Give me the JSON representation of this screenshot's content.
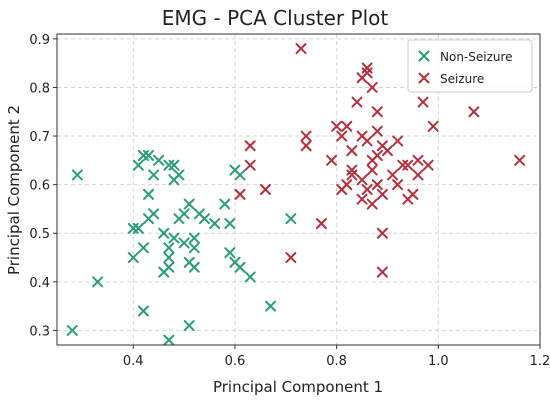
{
  "chart_data": {
    "type": "scatter",
    "title": "EMG - PCA Cluster Plot",
    "xlabel": "Principal Component 1",
    "ylabel": "Principal Component 2",
    "xlim": [
      0.25,
      1.2
    ],
    "ylim": [
      0.27,
      0.91
    ],
    "xticks": [
      0.4,
      0.6,
      0.8,
      1.0,
      1.2
    ],
    "yticks": [
      0.3,
      0.4,
      0.5,
      0.6,
      0.7,
      0.8,
      0.9
    ],
    "xtick_labels": [
      "0.4",
      "0.6",
      "0.8",
      "1.0",
      "1.2"
    ],
    "ytick_labels": [
      "0.3",
      "0.4",
      "0.5",
      "0.6",
      "0.7",
      "0.8",
      "0.9"
    ],
    "grid": true,
    "legend_position": "top-right",
    "marker": "x",
    "series": [
      {
        "name": "Non-Seizure",
        "color": "#2a9d7a",
        "points": [
          [
            0.28,
            0.3
          ],
          [
            0.29,
            0.62
          ],
          [
            0.33,
            0.4
          ],
          [
            0.4,
            0.45
          ],
          [
            0.4,
            0.51
          ],
          [
            0.41,
            0.64
          ],
          [
            0.41,
            0.51
          ],
          [
            0.42,
            0.47
          ],
          [
            0.42,
            0.34
          ],
          [
            0.42,
            0.66
          ],
          [
            0.43,
            0.58
          ],
          [
            0.43,
            0.53
          ],
          [
            0.43,
            0.66
          ],
          [
            0.44,
            0.62
          ],
          [
            0.44,
            0.54
          ],
          [
            0.45,
            0.65
          ],
          [
            0.46,
            0.5
          ],
          [
            0.46,
            0.42
          ],
          [
            0.47,
            0.45
          ],
          [
            0.47,
            0.43
          ],
          [
            0.47,
            0.64
          ],
          [
            0.47,
            0.47
          ],
          [
            0.48,
            0.64
          ],
          [
            0.48,
            0.61
          ],
          [
            0.48,
            0.49
          ],
          [
            0.49,
            0.53
          ],
          [
            0.49,
            0.62
          ],
          [
            0.5,
            0.54
          ],
          [
            0.5,
            0.48
          ],
          [
            0.51,
            0.56
          ],
          [
            0.51,
            0.44
          ],
          [
            0.51,
            0.31
          ],
          [
            0.52,
            0.43
          ],
          [
            0.52,
            0.47
          ],
          [
            0.52,
            0.49
          ],
          [
            0.53,
            0.54
          ],
          [
            0.54,
            0.53
          ],
          [
            0.47,
            0.28
          ],
          [
            0.56,
            0.52
          ],
          [
            0.58,
            0.56
          ],
          [
            0.59,
            0.52
          ],
          [
            0.59,
            0.46
          ],
          [
            0.6,
            0.63
          ],
          [
            0.6,
            0.44
          ],
          [
            0.61,
            0.62
          ],
          [
            0.61,
            0.43
          ],
          [
            0.63,
            0.41
          ],
          [
            0.67,
            0.35
          ],
          [
            0.71,
            0.53
          ]
        ]
      },
      {
        "name": "Seizure",
        "color": "#b5303c",
        "points": [
          [
            0.61,
            0.58
          ],
          [
            0.63,
            0.68
          ],
          [
            0.63,
            0.64
          ],
          [
            0.66,
            0.59
          ],
          [
            0.71,
            0.45
          ],
          [
            0.73,
            0.88
          ],
          [
            0.74,
            0.68
          ],
          [
            0.74,
            0.7
          ],
          [
            0.77,
            0.52
          ],
          [
            0.79,
            0.65
          ],
          [
            0.8,
            0.72
          ],
          [
            0.81,
            0.59
          ],
          [
            0.81,
            0.7
          ],
          [
            0.82,
            0.6
          ],
          [
            0.82,
            0.72
          ],
          [
            0.83,
            0.62
          ],
          [
            0.83,
            0.67
          ],
          [
            0.83,
            0.63
          ],
          [
            0.84,
            0.77
          ],
          [
            0.85,
            0.7
          ],
          [
            0.85,
            0.61
          ],
          [
            0.85,
            0.57
          ],
          [
            0.85,
            0.82
          ],
          [
            0.86,
            0.83
          ],
          [
            0.86,
            0.59
          ],
          [
            0.86,
            0.84
          ],
          [
            0.86,
            0.69
          ],
          [
            0.87,
            0.63
          ],
          [
            0.87,
            0.8
          ],
          [
            0.87,
            0.65
          ],
          [
            0.87,
            0.56
          ],
          [
            0.88,
            0.6
          ],
          [
            0.88,
            0.66
          ],
          [
            0.88,
            0.75
          ],
          [
            0.88,
            0.71
          ],
          [
            0.89,
            0.5
          ],
          [
            0.89,
            0.42
          ],
          [
            0.89,
            0.68
          ],
          [
            0.89,
            0.58
          ],
          [
            0.9,
            0.67
          ],
          [
            0.91,
            0.62
          ],
          [
            0.92,
            0.69
          ],
          [
            0.92,
            0.6
          ],
          [
            0.93,
            0.64
          ],
          [
            0.94,
            0.64
          ],
          [
            0.94,
            0.57
          ],
          [
            0.95,
            0.58
          ],
          [
            0.96,
            0.65
          ],
          [
            0.96,
            0.62
          ],
          [
            0.97,
            0.77
          ],
          [
            0.98,
            0.64
          ],
          [
            0.99,
            0.72
          ],
          [
            1.07,
            0.75
          ],
          [
            1.16,
            0.65
          ]
        ]
      }
    ]
  }
}
